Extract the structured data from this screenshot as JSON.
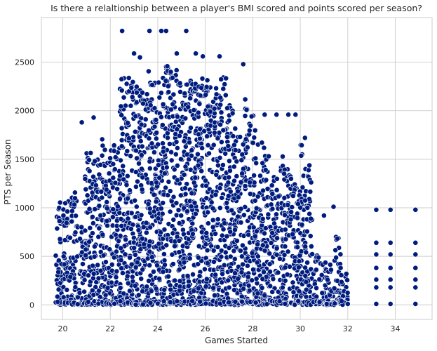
{
  "chart_data": {
    "type": "scatter",
    "title": "Is there a relaltionship between a player's BMI scored and points scored per season?",
    "xlabel": "Games Started",
    "ylabel": "PTS per Season",
    "xlim": [
      19.1,
      35.55
    ],
    "ylim": [
      -150,
      2960
    ],
    "xticks": [
      20,
      22,
      24,
      26,
      28,
      30,
      32,
      34
    ],
    "yticks": [
      0,
      500,
      1000,
      1500,
      2000,
      2500
    ],
    "grid": true,
    "point_color": "#001c7f",
    "edge_color": "#ffffff",
    "background_color": "#ffffff",
    "grid_color": "#cccccc",
    "highlighted_points": [
      {
        "x": 22.5,
        "y": 2822
      },
      {
        "x": 23.65,
        "y": 2822
      },
      {
        "x": 24.15,
        "y": 2822
      },
      {
        "x": 24.35,
        "y": 2822
      },
      {
        "x": 25.2,
        "y": 2822
      },
      {
        "x": 23.0,
        "y": 2590
      },
      {
        "x": 23.25,
        "y": 2550
      },
      {
        "x": 24.8,
        "y": 2590
      },
      {
        "x": 25.6,
        "y": 2590
      },
      {
        "x": 25.9,
        "y": 2560
      },
      {
        "x": 26.6,
        "y": 2560
      },
      {
        "x": 27.6,
        "y": 2480
      },
      {
        "x": 20.8,
        "y": 1880
      },
      {
        "x": 21.3,
        "y": 1930
      },
      {
        "x": 28.5,
        "y": 1960
      },
      {
        "x": 29.0,
        "y": 1960
      },
      {
        "x": 29.5,
        "y": 1960
      },
      {
        "x": 29.8,
        "y": 1960
      },
      {
        "x": 30.2,
        "y": 1720
      },
      {
        "x": 31.0,
        "y": 920
      },
      {
        "x": 31.4,
        "y": 1010
      },
      {
        "x": 31.7,
        "y": 380
      },
      {
        "x": 32.0,
        "y": 10
      },
      {
        "x": 33.2,
        "y": 980
      },
      {
        "x": 33.2,
        "y": 640
      },
      {
        "x": 33.2,
        "y": 520
      },
      {
        "x": 33.2,
        "y": 380
      },
      {
        "x": 33.2,
        "y": 260
      },
      {
        "x": 33.2,
        "y": 180
      },
      {
        "x": 33.2,
        "y": 10
      },
      {
        "x": 33.8,
        "y": 980
      },
      {
        "x": 33.8,
        "y": 640
      },
      {
        "x": 33.8,
        "y": 520
      },
      {
        "x": 33.8,
        "y": 380
      },
      {
        "x": 33.8,
        "y": 260
      },
      {
        "x": 33.8,
        "y": 180
      },
      {
        "x": 33.8,
        "y": 10
      },
      {
        "x": 34.85,
        "y": 980
      },
      {
        "x": 34.85,
        "y": 640
      },
      {
        "x": 34.85,
        "y": 520
      },
      {
        "x": 34.85,
        "y": 380
      },
      {
        "x": 34.85,
        "y": 260
      },
      {
        "x": 34.85,
        "y": 180
      },
      {
        "x": 34.85,
        "y": 10
      }
    ],
    "density_profile": [
      {
        "x": 19.7,
        "ymax": 1060
      },
      {
        "x": 20.0,
        "ymax": 1070
      },
      {
        "x": 20.3,
        "ymax": 1170
      },
      {
        "x": 20.6,
        "ymax": 820
      },
      {
        "x": 20.9,
        "ymax": 1640
      },
      {
        "x": 21.2,
        "ymax": 1500
      },
      {
        "x": 21.5,
        "ymax": 1780
      },
      {
        "x": 21.8,
        "ymax": 1680
      },
      {
        "x": 22.1,
        "ymax": 1700
      },
      {
        "x": 22.4,
        "ymax": 2450
      },
      {
        "x": 22.7,
        "ymax": 2350
      },
      {
        "x": 23.0,
        "ymax": 2500
      },
      {
        "x": 23.3,
        "ymax": 2200
      },
      {
        "x": 23.6,
        "ymax": 2450
      },
      {
        "x": 23.9,
        "ymax": 2300
      },
      {
        "x": 24.2,
        "ymax": 2460
      },
      {
        "x": 24.5,
        "ymax": 2450
      },
      {
        "x": 24.8,
        "ymax": 2350
      },
      {
        "x": 25.1,
        "ymax": 2400
      },
      {
        "x": 25.4,
        "ymax": 2300
      },
      {
        "x": 25.7,
        "ymax": 2420
      },
      {
        "x": 26.0,
        "ymax": 2350
      },
      {
        "x": 26.3,
        "ymax": 2250
      },
      {
        "x": 26.6,
        "ymax": 2350
      },
      {
        "x": 26.9,
        "ymax": 2100
      },
      {
        "x": 27.2,
        "ymax": 1950
      },
      {
        "x": 27.5,
        "ymax": 2150
      },
      {
        "x": 27.8,
        "ymax": 1950
      },
      {
        "x": 28.1,
        "ymax": 1700
      },
      {
        "x": 28.4,
        "ymax": 1650
      },
      {
        "x": 28.7,
        "ymax": 1400
      },
      {
        "x": 29.0,
        "ymax": 1550
      },
      {
        "x": 29.3,
        "ymax": 1400
      },
      {
        "x": 29.6,
        "ymax": 1300
      },
      {
        "x": 29.9,
        "ymax": 1650
      },
      {
        "x": 30.2,
        "ymax": 1450
      },
      {
        "x": 30.5,
        "ymax": 560
      },
      {
        "x": 30.8,
        "ymax": 470
      },
      {
        "x": 31.1,
        "ymax": 420
      },
      {
        "x": 31.4,
        "ymax": 700
      },
      {
        "x": 31.7,
        "ymax": 330
      }
    ]
  }
}
